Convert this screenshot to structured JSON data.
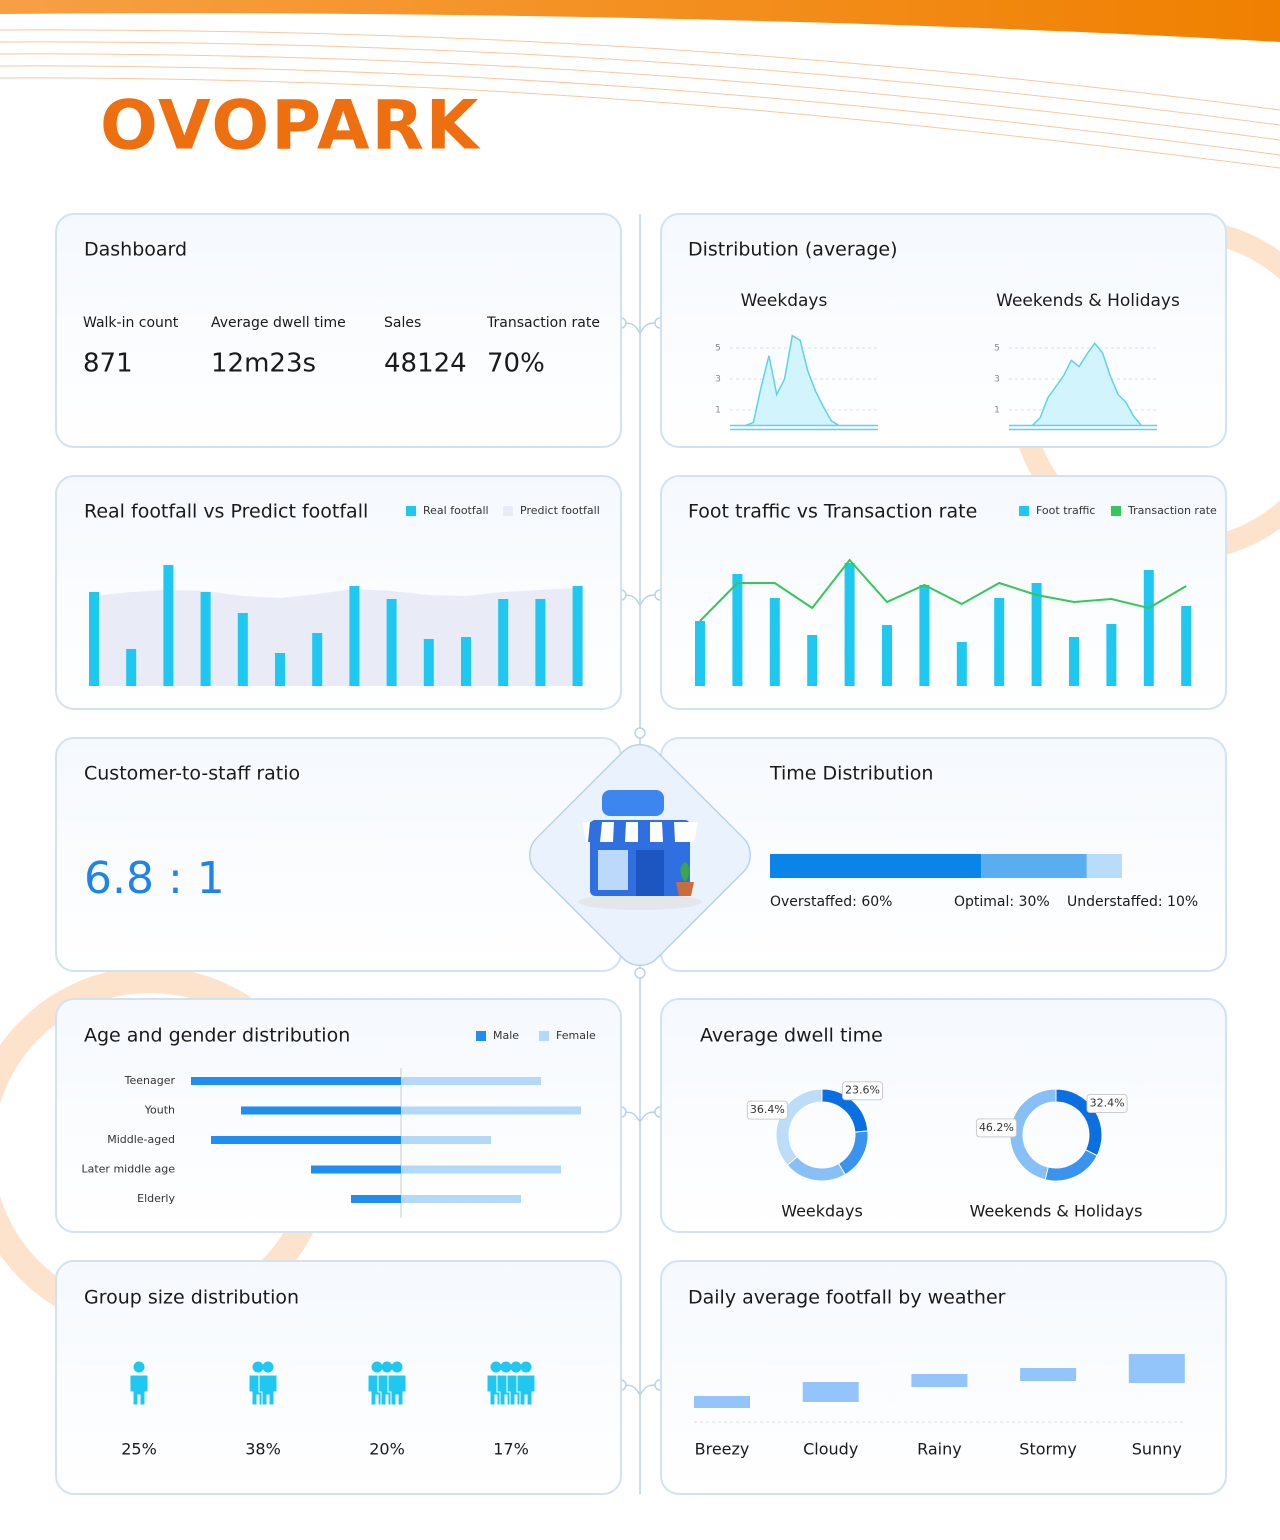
{
  "brand": "OVOPARK",
  "dashboard": {
    "title": "Dashboard",
    "metrics": [
      {
        "label": "Walk-in count",
        "value": "871"
      },
      {
        "label": "Average dwell time",
        "value": "12m23s"
      },
      {
        "label": "Sales",
        "value": "48124"
      },
      {
        "label": "Transaction rate",
        "value": "70%"
      }
    ]
  },
  "staff_ratio": {
    "title": "Customer-to-staff ratio",
    "value": "6.8 : 1"
  },
  "chart_data": [
    {
      "type": "area",
      "title": "Distribution (average)",
      "ylim": [
        0,
        6
      ],
      "yticks": [
        1,
        3,
        5
      ],
      "grid": true,
      "series": [
        {
          "name": "Weekdays",
          "color": "#5cd2ee",
          "values": [
            0,
            0,
            0,
            0.2,
            2.5,
            4.5,
            2.0,
            3.0,
            5.8,
            5.5,
            3.5,
            2.2,
            1.2,
            0.3,
            0,
            0,
            0,
            0,
            0,
            0
          ]
        },
        {
          "name": "Weekends & Holidays",
          "color": "#5cd2ee",
          "values": [
            0,
            0,
            0,
            0,
            0.5,
            1.8,
            2.5,
            3.2,
            4.2,
            3.8,
            4.6,
            5.3,
            4.7,
            3.2,
            2.0,
            1.5,
            0.6,
            0,
            0,
            0
          ]
        }
      ]
    },
    {
      "type": "bar-band",
      "title": "Real footfall vs Predict footfall",
      "ylim": [
        0,
        130
      ],
      "series": [
        {
          "name": "Real footfall",
          "color": "#1ec8f0",
          "values": [
            94,
            37,
            121,
            94,
            73,
            33,
            53,
            100,
            87,
            47,
            49,
            87,
            87,
            100
          ]
        },
        {
          "name": "Predict footfall",
          "color": "#e9ebf7",
          "values": [
            90,
            94,
            96,
            95,
            90,
            88,
            92,
            97,
            95,
            91,
            90,
            94,
            96,
            98
          ]
        }
      ]
    },
    {
      "type": "bar-line",
      "title": "Foot traffic vs Transaction rate",
      "ylim": [
        0,
        130
      ],
      "series": [
        {
          "name": "Foot traffic",
          "color": "#1ec8f0",
          "values": [
            65,
            112,
            88,
            51,
            123,
            61,
            101,
            44,
            88,
            103,
            49,
            62,
            116,
            80
          ]
        },
        {
          "name": "Transaction rate",
          "color": "#35c75a",
          "values": [
            65,
            103,
            103,
            78,
            126,
            84,
            101,
            82,
            103,
            91,
            84,
            87,
            78,
            100
          ]
        }
      ]
    },
    {
      "type": "stacked-bar-h",
      "title": "Time Distribution",
      "xlim": [
        0,
        100
      ],
      "values": [
        60,
        30,
        10
      ],
      "value_labels": [
        "Overstaffed: 60%",
        "Optimal: 30%",
        "Understaffed: 10%"
      ],
      "colors": [
        "#0a84e8",
        "#5aaef0",
        "#b8dcfa"
      ]
    },
    {
      "type": "butterfly",
      "title": "Age and gender distribution",
      "xlim": [
        -22,
        22
      ],
      "categories": [
        "Teenager",
        "Youth",
        "Middle-aged",
        "Later middle age",
        "Elderly"
      ],
      "series": [
        {
          "name": "Male",
          "color": "#1e8ff0",
          "values": [
            21,
            16,
            19,
            9,
            5
          ]
        },
        {
          "name": "Female",
          "color": "#b3d8fa",
          "values": [
            14,
            18,
            9,
            16,
            12
          ]
        }
      ]
    },
    {
      "type": "donut",
      "title": "Average dwell time",
      "series": [
        {
          "name": "Weekdays",
          "colors": [
            "#0a6fe0",
            "#3a93ee",
            "#86c0f6",
            "#bcdcfa"
          ],
          "values": [
            23.6,
            18,
            22,
            36.4
          ],
          "value_labels": [
            "23.6%",
            null,
            null,
            "36.4%"
          ]
        },
        {
          "name": "Weekends & Holidays",
          "colors": [
            "#0a6fe0",
            "#3a93ee",
            "#86c0f6"
          ],
          "values": [
            32.4,
            21.4,
            46.2
          ],
          "value_labels": [
            "32.4%",
            null,
            "46.2%"
          ]
        }
      ]
    },
    {
      "type": "pictogram",
      "title": "Group size distribution",
      "color": "#1ec8f0",
      "values": [
        25,
        38,
        20,
        17
      ],
      "value_labels": [
        "25%",
        "38%",
        "20%",
        "17%"
      ]
    },
    {
      "type": "floating-bar",
      "title": "Daily average footfall by weather",
      "color": "#93c5fb",
      "ylim": [
        0,
        80
      ],
      "categories": [
        "Breezy",
        "Cloudy",
        "Rainy",
        "Stormy",
        "Sunny"
      ],
      "values": [
        26,
        40,
        48,
        54,
        68
      ],
      "base": [
        14,
        20,
        35,
        41,
        39
      ]
    }
  ]
}
